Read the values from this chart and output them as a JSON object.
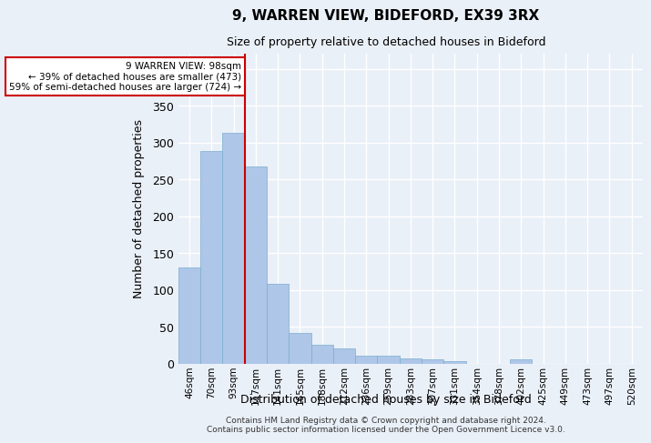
{
  "title1": "9, WARREN VIEW, BIDEFORD, EX39 3RX",
  "title2": "Size of property relative to detached houses in Bideford",
  "xlabel": "Distribution of detached houses by size in Bideford",
  "ylabel": "Number of detached properties",
  "footnote": "Contains HM Land Registry data © Crown copyright and database right 2024.\nContains public sector information licensed under the Open Government Licence v3.0.",
  "categories": [
    "46sqm",
    "70sqm",
    "93sqm",
    "117sqm",
    "141sqm",
    "165sqm",
    "188sqm",
    "212sqm",
    "236sqm",
    "259sqm",
    "283sqm",
    "307sqm",
    "331sqm",
    "354sqm",
    "378sqm",
    "402sqm",
    "425sqm",
    "449sqm",
    "473sqm",
    "497sqm",
    "520sqm"
  ],
  "values": [
    130,
    288,
    313,
    268,
    108,
    42,
    25,
    21,
    10,
    10,
    7,
    5,
    3,
    0,
    0,
    5,
    0,
    0,
    0,
    0,
    0
  ],
  "bar_color": "#aec6e8",
  "bar_edgecolor": "#7aaed0",
  "bg_color": "#eaf0f8",
  "grid_color": "#ffffff",
  "annotation_line1": "9 WARREN VIEW: 98sqm",
  "annotation_line2": "← 39% of detached houses are smaller (473)",
  "annotation_line3": "59% of semi-detached houses are larger (724) →",
  "annotation_box_color": "#ffffff",
  "annotation_box_edgecolor": "#cc0000",
  "redline_x": 2.5,
  "ylim": [
    0,
    420
  ],
  "yticks": [
    0,
    50,
    100,
    150,
    200,
    250,
    300,
    350,
    400
  ]
}
